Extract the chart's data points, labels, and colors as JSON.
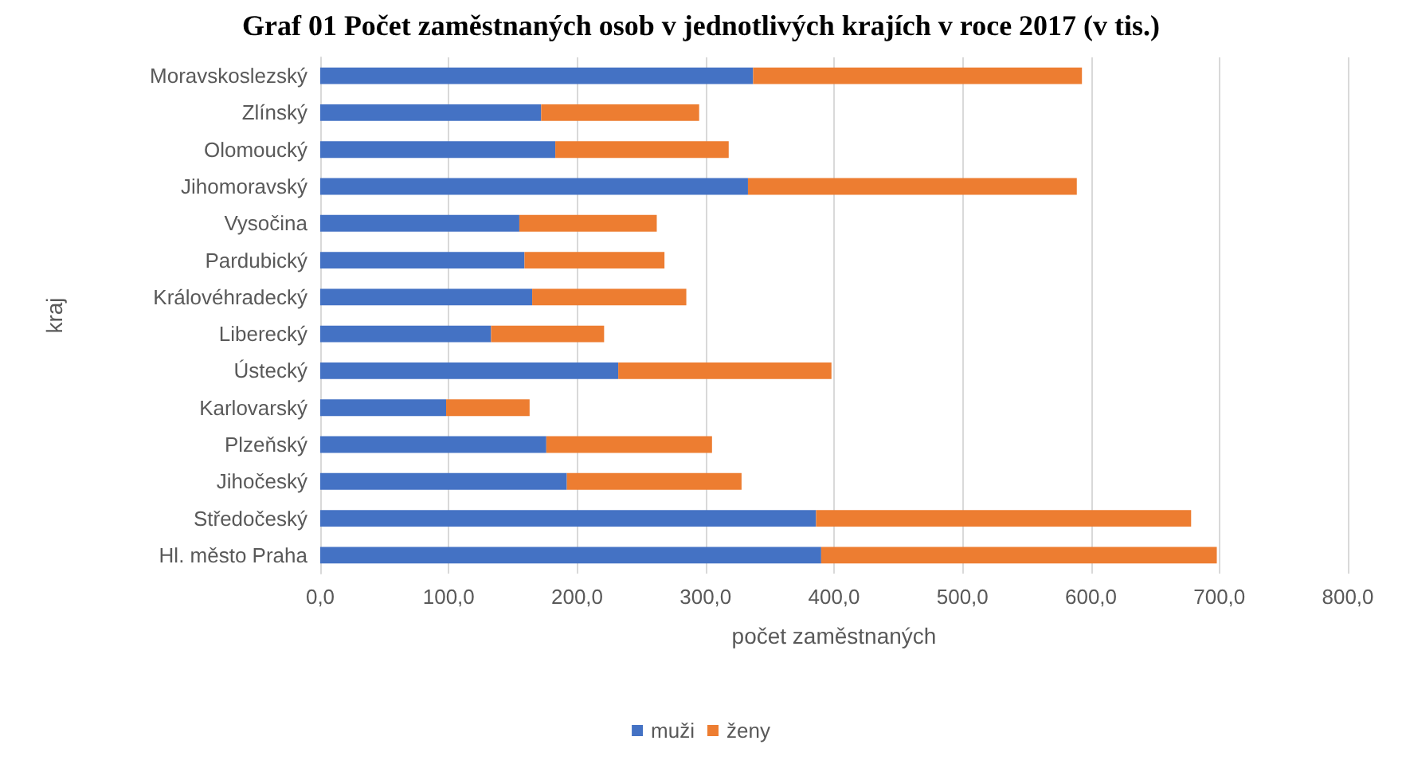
{
  "chart_data": {
    "type": "bar",
    "orientation": "horizontal",
    "stacked": true,
    "title": "Graf 01 Počet zaměstnaných osob v jednotlivých krajích v roce 2017 (v tis.)",
    "xlabel": "počet zaměstnaných",
    "ylabel": "kraj",
    "categories": [
      "Moravskoslezský",
      "Zlínský",
      "Olomoucký",
      "Jihomoravský",
      "Vysočina",
      "Pardubický",
      "Královéhradecký",
      "Liberecký",
      "Ústecký",
      "Karlovarský",
      "Plzeňský",
      "Jihočeský",
      "Středočeský",
      "Hl. město Praha"
    ],
    "series": [
      {
        "name": "muži",
        "color": "#4472c4",
        "values": [
          337,
          172,
          183,
          333,
          155,
          159,
          165,
          133,
          232,
          98,
          176,
          192,
          386,
          390
        ]
      },
      {
        "name": "ženy",
        "color": "#ed7d31",
        "values": [
          256,
          123,
          135,
          256,
          107,
          109,
          120,
          88,
          166,
          65,
          129,
          136,
          292,
          308
        ]
      }
    ],
    "xlim": [
      0,
      800
    ],
    "xticks": [
      {
        "value": 0,
        "label": "0,0"
      },
      {
        "value": 100,
        "label": "100,0"
      },
      {
        "value": 200,
        "label": "200,0"
      },
      {
        "value": 300,
        "label": "300,0"
      },
      {
        "value": 400,
        "label": "400,0"
      },
      {
        "value": 500,
        "label": "500,0"
      },
      {
        "value": 600,
        "label": "600,0"
      },
      {
        "value": 700,
        "label": "700,0"
      },
      {
        "value": 800,
        "label": "800,0"
      }
    ],
    "grid": "x",
    "legend": "bottom"
  }
}
